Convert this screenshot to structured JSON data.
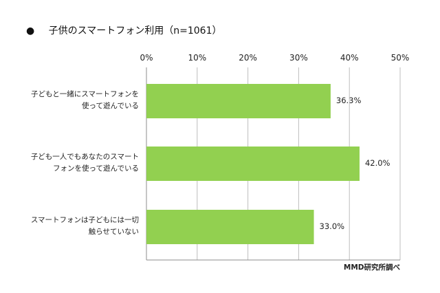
{
  "chart_data": {
    "type": "bar",
    "orientation": "horizontal",
    "title": "子供のスマートフォン利用（n=1061）",
    "title_bullet": "●",
    "categories": [
      "子どもと一緒にスマートフォンを\n使って遊んでいる",
      "子ども一人でもあなたのスマートフォンを使って遊んでいる",
      "スマートフォンは子どもには一切\n触らせていない"
    ],
    "category_display": [
      "子どもと一緒にスマートフォンを\n使って遊んでいる",
      "子ども一人でもあなたのスマート\nフォンを使って遊んでいる",
      "スマートフォンは子どもには一切\n触らせていない"
    ],
    "values": [
      36.3,
      42.0,
      33.0
    ],
    "value_labels": [
      "36.3%",
      "42.0%",
      "33.0%"
    ],
    "xlim": [
      0,
      50
    ],
    "x_ticks": [
      "0%",
      "10%",
      "20%",
      "30%",
      "40%",
      "50%"
    ],
    "x_axis_position": "top",
    "grid": true,
    "legend": "none",
    "source": "MMD研究所調べ",
    "colors": {
      "bar": "#92d050",
      "grid": "#bdbdbd",
      "axis": "#8c8c8c",
      "text": "#222222"
    }
  }
}
